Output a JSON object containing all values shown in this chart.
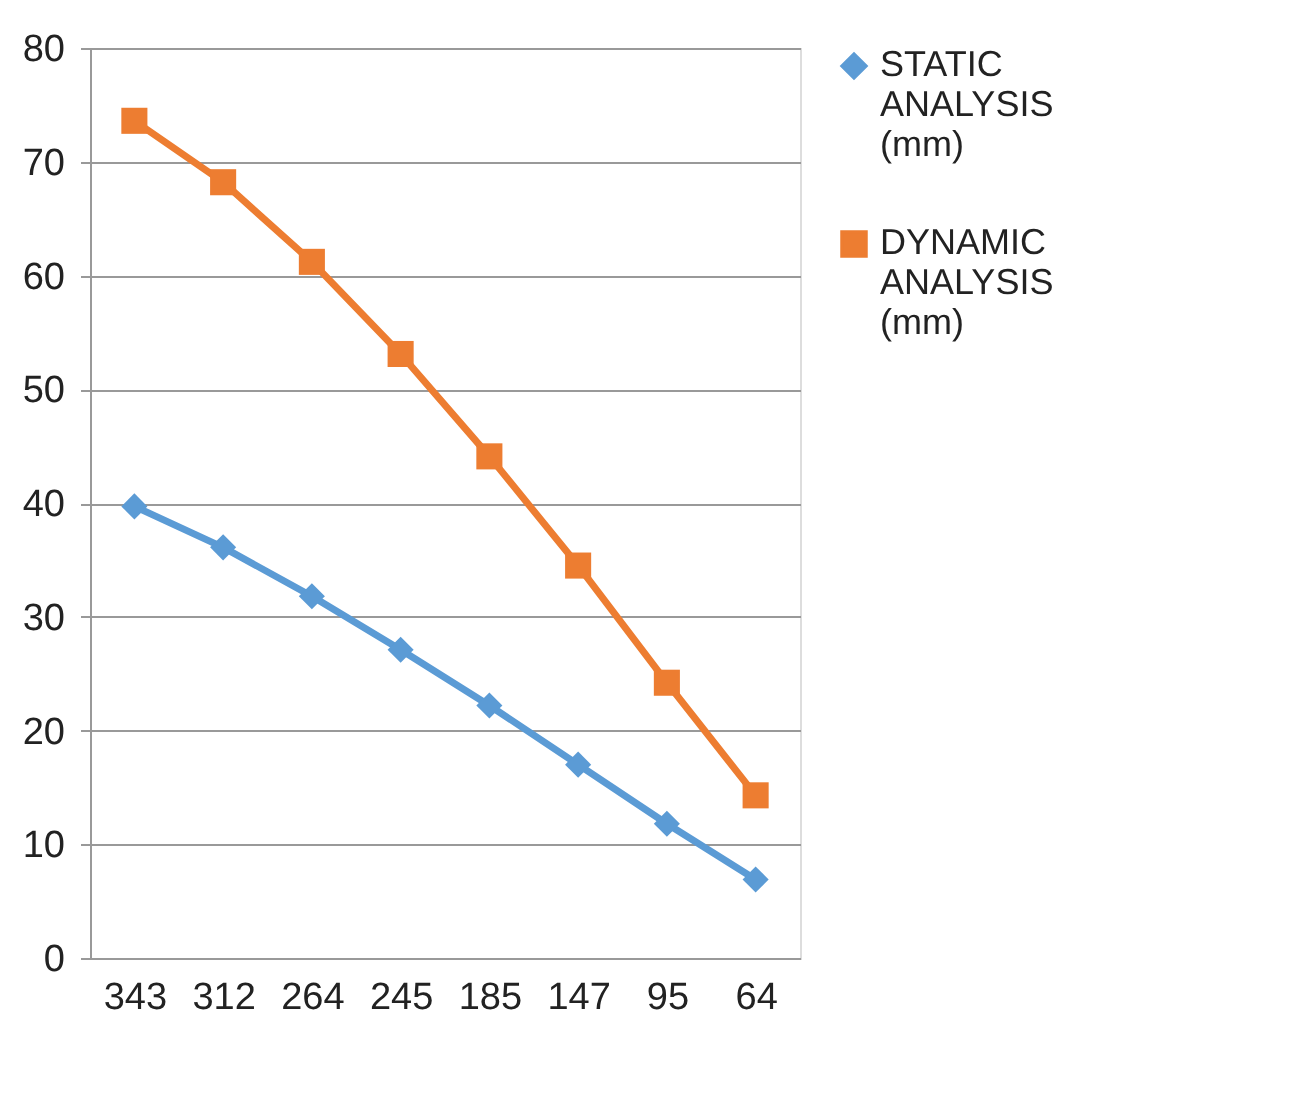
{
  "chart_data": {
    "type": "line",
    "categories": [
      "343",
      "312",
      "264",
      "245",
      "185",
      "147",
      "95",
      "64"
    ],
    "series": [
      {
        "name": "STATIC ANALYSIS (mm)",
        "color": "#5b9bd5",
        "marker": "diamond",
        "values": [
          39.7,
          36.1,
          31.8,
          27.1,
          22.2,
          17.0,
          11.8,
          6.9
        ]
      },
      {
        "name": "DYNAMIC ANALYSIS (mm)",
        "color": "#ed7d31",
        "marker": "square",
        "values": [
          73.6,
          68.2,
          61.2,
          53.1,
          44.1,
          34.5,
          24.2,
          14.3
        ]
      }
    ],
    "ylim": [
      0,
      80
    ],
    "yticks": [
      0,
      10,
      20,
      30,
      40,
      50,
      60,
      70,
      80
    ],
    "grid": "y",
    "legend": "right",
    "line_style": "solid"
  }
}
